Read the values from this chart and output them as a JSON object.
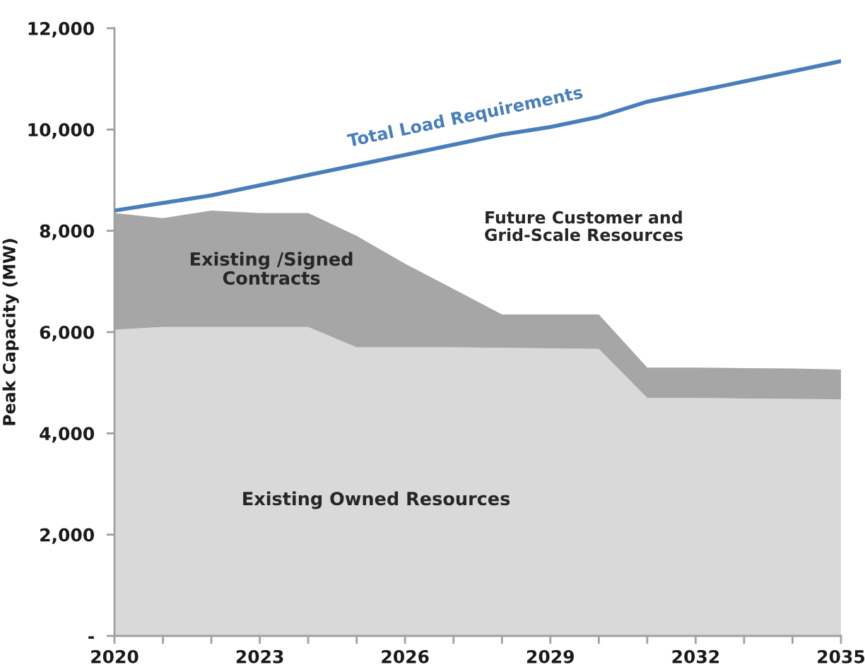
{
  "chart_data": {
    "type": "area",
    "stacked": true,
    "ylabel": "Peak Capacity (MW)",
    "x": [
      2020,
      2021,
      2022,
      2023,
      2024,
      2025,
      2026,
      2027,
      2028,
      2029,
      2030,
      2031,
      2032,
      2033,
      2034,
      2035
    ],
    "xlim": [
      2020,
      2035
    ],
    "xticks": [
      2020,
      {
        "value": 2021,
        "label": null
      },
      {
        "value": 2022,
        "label": null
      },
      2023,
      {
        "value": 2024,
        "label": null
      },
      {
        "value": 2025,
        "label": null
      },
      2026,
      {
        "value": 2027,
        "label": null
      },
      {
        "value": 2028,
        "label": null
      },
      2029,
      {
        "value": 2030,
        "label": null
      },
      {
        "value": 2031,
        "label": null
      },
      2032,
      {
        "value": 2033,
        "label": null
      },
      {
        "value": 2034,
        "label": null
      },
      2035
    ],
    "ylim": [
      0,
      12000
    ],
    "yticks": [
      {
        "value": 0,
        "label": "-"
      },
      {
        "value": 2000,
        "label": "2,000"
      },
      {
        "value": 4000,
        "label": "4,000"
      },
      {
        "value": 6000,
        "label": "6,000"
      },
      {
        "value": 8000,
        "label": "8,000"
      },
      {
        "value": 10000,
        "label": "10,000"
      },
      {
        "value": 12000,
        "label": "12,000"
      }
    ],
    "series": [
      {
        "name": "Existing Owned Resources",
        "color": "#d9d9d9",
        "values": [
          6050,
          6100,
          6100,
          6100,
          6100,
          5700,
          5700,
          5700,
          5690,
          5680,
          5670,
          4700,
          4700,
          4690,
          4680,
          4670
        ]
      },
      {
        "name": "Existing /Signed\nContracts",
        "color": "#a6a6a6",
        "values": [
          2300,
          2150,
          2300,
          2250,
          2250,
          2200,
          1650,
          1150,
          660,
          670,
          680,
          600,
          600,
          600,
          600,
          590
        ]
      },
      {
        "name": "Total Load Requirements",
        "type": "line",
        "color": "#4a7ebb",
        "values": [
          8400,
          8550,
          8700,
          8900,
          9100,
          9300,
          9500,
          9700,
          9900,
          10050,
          10250,
          10550,
          10750,
          10950,
          11150,
          11350
        ]
      }
    ],
    "annotations": [
      "Future Customer and\nGrid-Scale Resources"
    ],
    "grid": false,
    "legend": false,
    "marker": "none",
    "line_style": "solid"
  }
}
